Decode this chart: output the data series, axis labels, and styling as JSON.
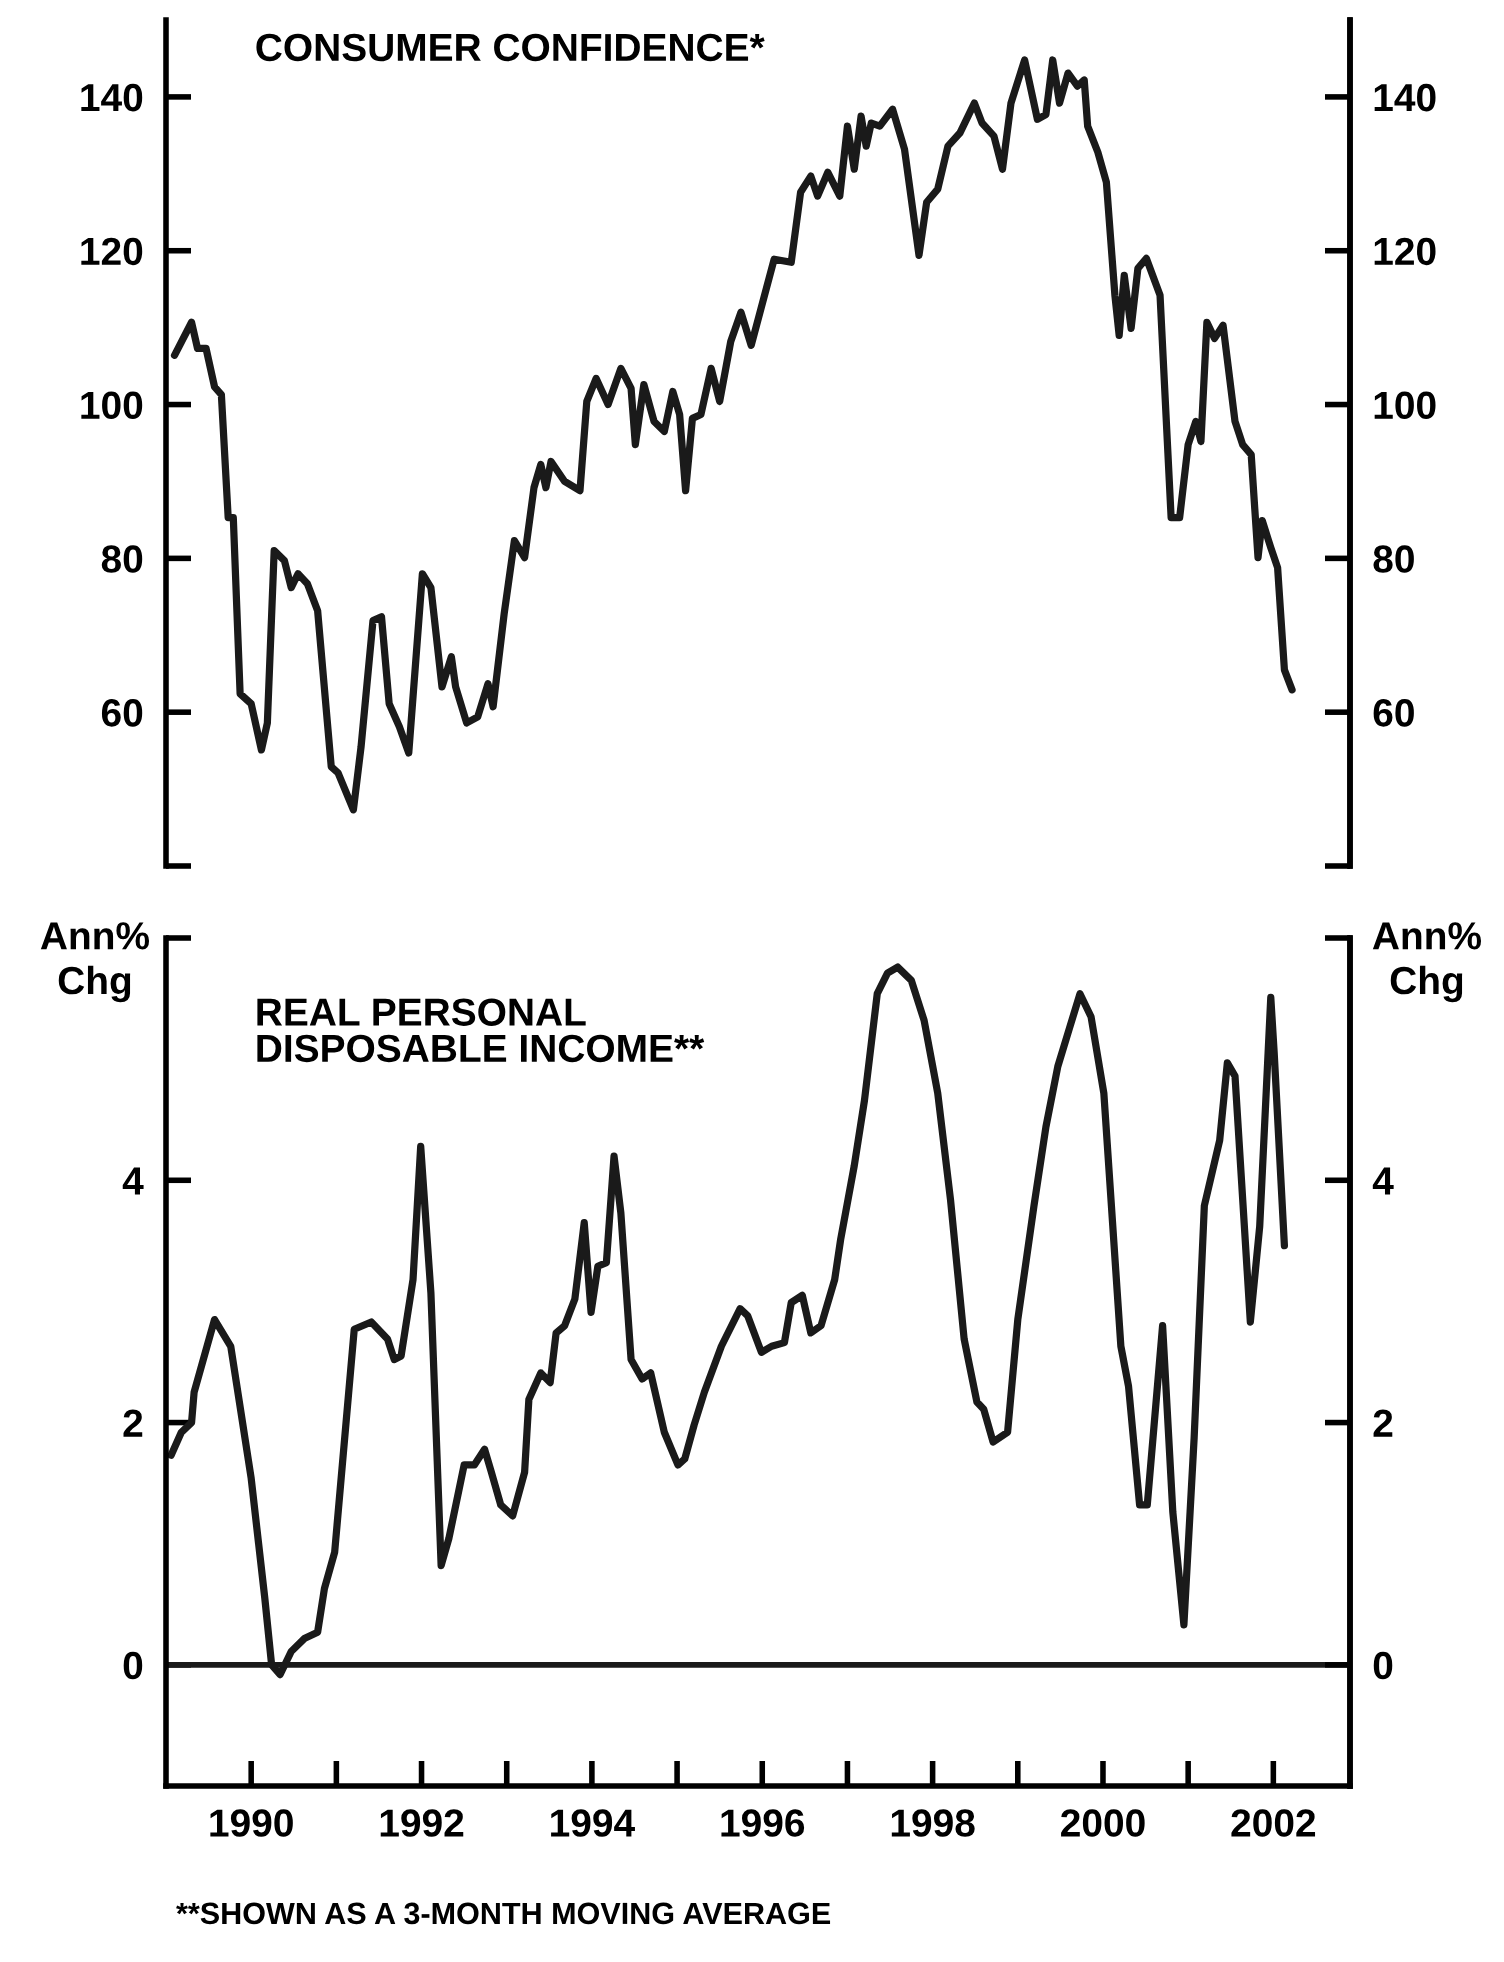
{
  "chart_data": [
    {
      "type": "line",
      "title": "CONSUMER CONFIDENCE*",
      "tick_labels": "y",
      "x": [
        1989.1,
        1989.3,
        1989.37,
        1989.47,
        1989.57,
        1989.65,
        1989.73,
        1989.79,
        1989.87,
        1990.0,
        1990.12,
        1990.19,
        1990.27,
        1990.39,
        1990.47,
        1990.55,
        1990.66,
        1990.78,
        1990.94,
        1991.02,
        1991.2,
        1991.29,
        1991.43,
        1991.53,
        1991.62,
        1991.74,
        1991.85,
        1992.01,
        1992.11,
        1992.24,
        1992.35,
        1992.4,
        1992.53,
        1992.66,
        1992.78,
        1992.84,
        1992.97,
        1993.09,
        1993.21,
        1993.32,
        1993.4,
        1993.46,
        1993.52,
        1993.68,
        1993.86,
        1993.94,
        1994.05,
        1994.19,
        1994.34,
        1994.46,
        1994.51,
        1994.61,
        1994.73,
        1994.85,
        1994.95,
        1995.03,
        1995.1,
        1995.18,
        1995.28,
        1995.4,
        1995.5,
        1995.63,
        1995.75,
        1995.87,
        1996.14,
        1996.34,
        1996.45,
        1996.57,
        1996.65,
        1996.77,
        1996.91,
        1997.0,
        1997.08,
        1997.16,
        1997.22,
        1997.28,
        1997.38,
        1997.53,
        1997.67,
        1997.84,
        1997.93,
        1998.06,
        1998.18,
        1998.32,
        1998.49,
        1998.58,
        1998.72,
        1998.82,
        1998.92,
        1999.08,
        1999.23,
        1999.33,
        1999.41,
        1999.49,
        1999.59,
        1999.7,
        1999.78,
        1999.82,
        1999.94,
        2000.04,
        2000.14,
        2000.19,
        2000.25,
        2000.33,
        2000.41,
        2000.51,
        2000.67,
        2000.8,
        2000.9,
        2001.0,
        2001.09,
        2001.15,
        2001.22,
        2001.31,
        2001.41,
        2001.55,
        2001.64,
        2001.74,
        2001.82,
        2001.87,
        2001.97,
        2002.05,
        2002.13,
        2002.22
      ],
      "series": [
        {
          "color": "#1a1a1a",
          "values": [
            106.4,
            110.7,
            107.3,
            107.3,
            102.3,
            101.3,
            85.3,
            85.3,
            62.4,
            61.1,
            55.1,
            58.6,
            81.0,
            79.7,
            76.2,
            78.0,
            76.7,
            73.2,
            52.9,
            52.1,
            47.3,
            55.5,
            71.9,
            72.4,
            61.1,
            58.1,
            54.7,
            78.0,
            76.2,
            63.3,
            67.2,
            63.3,
            58.6,
            59.4,
            63.7,
            60.7,
            72.8,
            82.3,
            80.1,
            89.2,
            92.2,
            89.2,
            92.6,
            90.0,
            88.8,
            100.4,
            103.4,
            100.0,
            104.7,
            102.1,
            94.8,
            102.6,
            97.8,
            96.5,
            101.7,
            98.7,
            88.8,
            98.2,
            98.7,
            104.7,
            100.4,
            108.2,
            112.0,
            107.7,
            118.9,
            118.5,
            127.6,
            129.7,
            127.1,
            130.2,
            127.1,
            136.2,
            130.6,
            137.5,
            133.6,
            136.6,
            136.2,
            138.4,
            133.2,
            119.4,
            126.3,
            128.0,
            133.6,
            135.3,
            139.2,
            136.6,
            134.9,
            130.6,
            139.2,
            144.8,
            137.1,
            137.7,
            144.8,
            139.2,
            143.1,
            141.4,
            142.2,
            136.2,
            132.8,
            128.9,
            114.2,
            109.0,
            116.8,
            109.9,
            117.7,
            119.0,
            114.2,
            85.3,
            85.3,
            94.8,
            97.8,
            95.2,
            110.7,
            108.6,
            110.3,
            97.8,
            94.8,
            93.5,
            80.1,
            84.9,
            81.4,
            78.8,
            65.5,
            62.9
          ]
        }
      ],
      "xlim": [
        1989.0,
        2002.9
      ],
      "ylim": [
        40,
        150
      ],
      "yticks": [
        {
          "value": 40,
          "label": null
        },
        60,
        80,
        100,
        120,
        140
      ],
      "y2lim": [
        40,
        150
      ],
      "y2ticks": [
        {
          "value": 40,
          "label": null
        },
        60,
        80,
        100,
        120,
        140
      ]
    },
    {
      "type": "line",
      "title": "REAL PERSONAL\nDISPOSABLE INCOME**",
      "ylabel": "Ann%\nChg",
      "y2label": "Ann%\nChg",
      "x": [
        1989.06,
        1989.18,
        1989.3,
        1989.33,
        1989.57,
        1989.76,
        1990.0,
        1990.16,
        1990.24,
        1990.34,
        1990.47,
        1990.63,
        1990.78,
        1990.86,
        1990.98,
        1991.21,
        1991.41,
        1991.6,
        1991.68,
        1991.76,
        1991.9,
        1991.99,
        1992.11,
        1992.23,
        1992.32,
        1992.5,
        1992.62,
        1992.74,
        1992.82,
        1992.93,
        1993.07,
        1993.21,
        1993.26,
        1993.4,
        1993.51,
        1993.58,
        1993.68,
        1993.8,
        1993.91,
        1993.99,
        1994.07,
        1994.17,
        1994.26,
        1994.34,
        1994.46,
        1994.59,
        1994.69,
        1994.85,
        1995.01,
        1995.09,
        1995.2,
        1995.32,
        1995.52,
        1995.74,
        1995.83,
        1995.99,
        1996.11,
        1996.26,
        1996.34,
        1996.47,
        1996.57,
        1996.69,
        1996.85,
        1996.92,
        1997.08,
        1997.2,
        1997.35,
        1997.47,
        1997.59,
        1997.75,
        1997.9,
        1998.06,
        1998.21,
        1998.37,
        1998.52,
        1998.6,
        1998.71,
        1998.88,
        1999.0,
        1999.19,
        1999.33,
        1999.47,
        1999.6,
        1999.73,
        1999.86,
        2000.01,
        2000.21,
        2000.3,
        2000.43,
        2000.52,
        2000.7,
        2000.82,
        2000.95,
        2001.07,
        2001.19,
        2001.37,
        2001.46,
        2001.55,
        2001.73,
        2001.84,
        2001.97,
        2002.01,
        2002.13
      ],
      "series": [
        {
          "color": "#1a1a1a",
          "values": [
            1.73,
            1.92,
            2.0,
            2.25,
            2.85,
            2.63,
            1.54,
            0.55,
            0.0,
            -0.08,
            0.11,
            0.22,
            0.27,
            0.63,
            0.93,
            2.77,
            2.83,
            2.69,
            2.52,
            2.55,
            3.18,
            4.28,
            3.07,
            0.82,
            1.04,
            1.65,
            1.65,
            1.78,
            1.59,
            1.32,
            1.23,
            1.59,
            2.19,
            2.41,
            2.33,
            2.74,
            2.8,
            3.02,
            3.65,
            2.91,
            3.29,
            3.32,
            4.2,
            3.73,
            2.52,
            2.36,
            2.41,
            1.92,
            1.65,
            1.7,
            1.98,
            2.25,
            2.63,
            2.94,
            2.88,
            2.58,
            2.63,
            2.66,
            2.99,
            3.05,
            2.74,
            2.8,
            3.18,
            3.51,
            4.12,
            4.66,
            5.54,
            5.71,
            5.76,
            5.65,
            5.32,
            4.72,
            3.84,
            2.69,
            2.17,
            2.11,
            1.84,
            1.92,
            2.85,
            3.79,
            4.44,
            4.94,
            5.24,
            5.54,
            5.35,
            4.72,
            2.63,
            2.3,
            1.32,
            1.32,
            2.8,
            1.26,
            0.33,
            1.87,
            3.79,
            4.33,
            4.97,
            4.86,
            2.83,
            3.62,
            5.51,
            5.05,
            3.46
          ]
        }
      ],
      "xlim": [
        1989.0,
        2002.9
      ],
      "xticks": [
        1990,
        {
          "value": 1991,
          "label": null
        },
        1992,
        {
          "value": 1993,
          "label": null
        },
        1994,
        {
          "value": 1995,
          "label": null
        },
        1996,
        {
          "value": 1997,
          "label": null
        },
        1998,
        {
          "value": 1999,
          "label": null
        },
        2000,
        {
          "value": 2001,
          "label": null
        },
        2002
      ],
      "ylim": [
        -1,
        6
      ],
      "yticks": [
        0,
        2,
        4,
        {
          "value": 6,
          "label": null
        }
      ],
      "y2lim": [
        -1,
        6
      ],
      "y2ticks": [
        0,
        2,
        4,
        {
          "value": 6,
          "label": null
        }
      ],
      "ref_lines": [
        {
          "axis": "y",
          "value": 0
        }
      ],
      "annotations": [
        "**SHOWN AS A 3-MONTH MOVING AVERAGE"
      ]
    }
  ]
}
